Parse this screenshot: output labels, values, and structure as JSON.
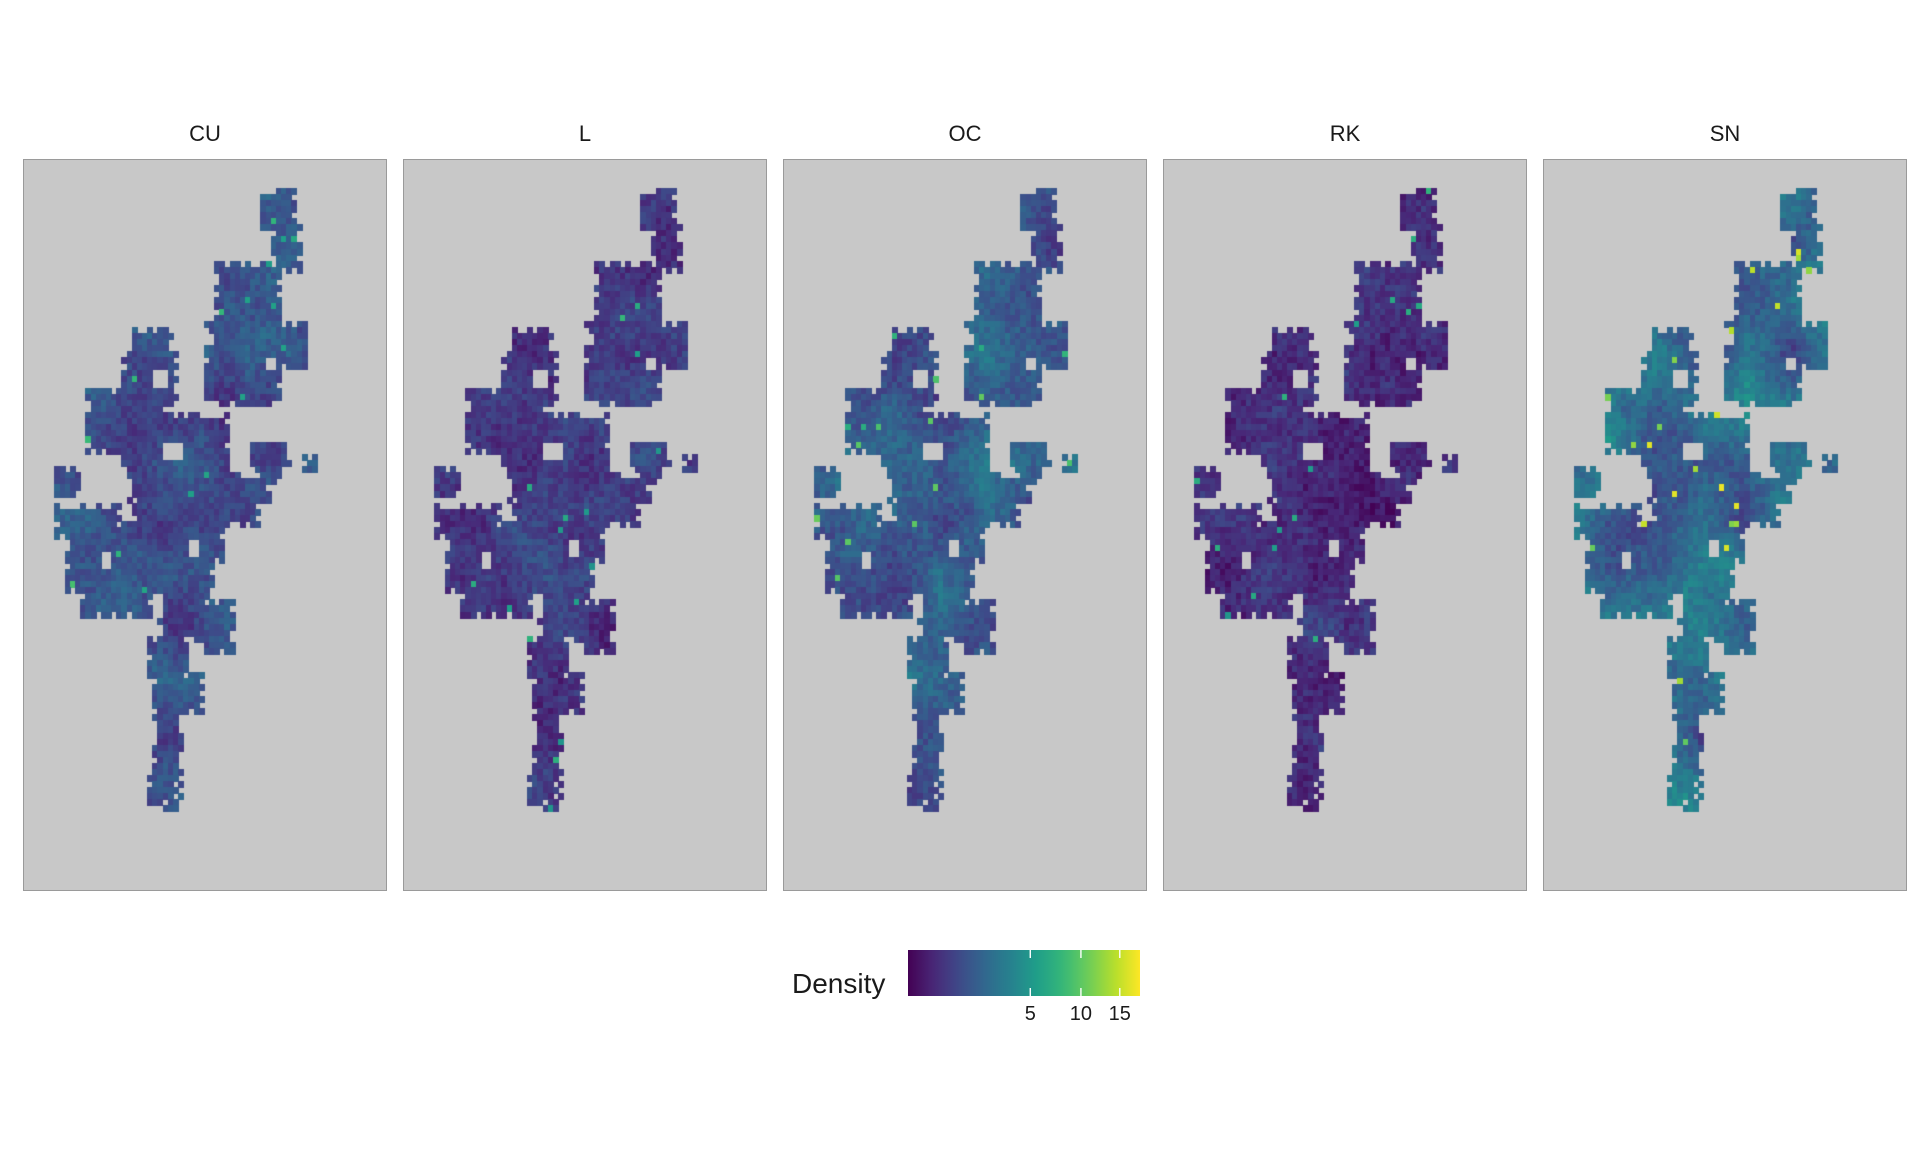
{
  "chart_data": {
    "type": "heatmap",
    "facets": [
      "CU",
      "L",
      "OC",
      "RK",
      "SN"
    ],
    "fill_variable": "Density",
    "colormap": "viridis",
    "legend": {
      "title": "Density",
      "position": "bottom",
      "breaks": [
        5,
        10,
        15
      ],
      "break_labels": [
        "5",
        "10",
        "15"
      ],
      "range": [
        0,
        18
      ]
    },
    "panel_background": "#c8c8c8",
    "axes_visible": false,
    "grid": false,
    "typical_density_by_facet": [
      {
        "facet": "CU",
        "median": 4.0,
        "max": 13
      },
      {
        "facet": "L",
        "median": 2.8,
        "max": 12
      },
      {
        "facet": "OC",
        "median": 5.0,
        "max": 14
      },
      {
        "facet": "RK",
        "median": 2.4,
        "max": 12
      },
      {
        "facet": "SN",
        "median": 6.5,
        "max": 18
      }
    ]
  }
}
